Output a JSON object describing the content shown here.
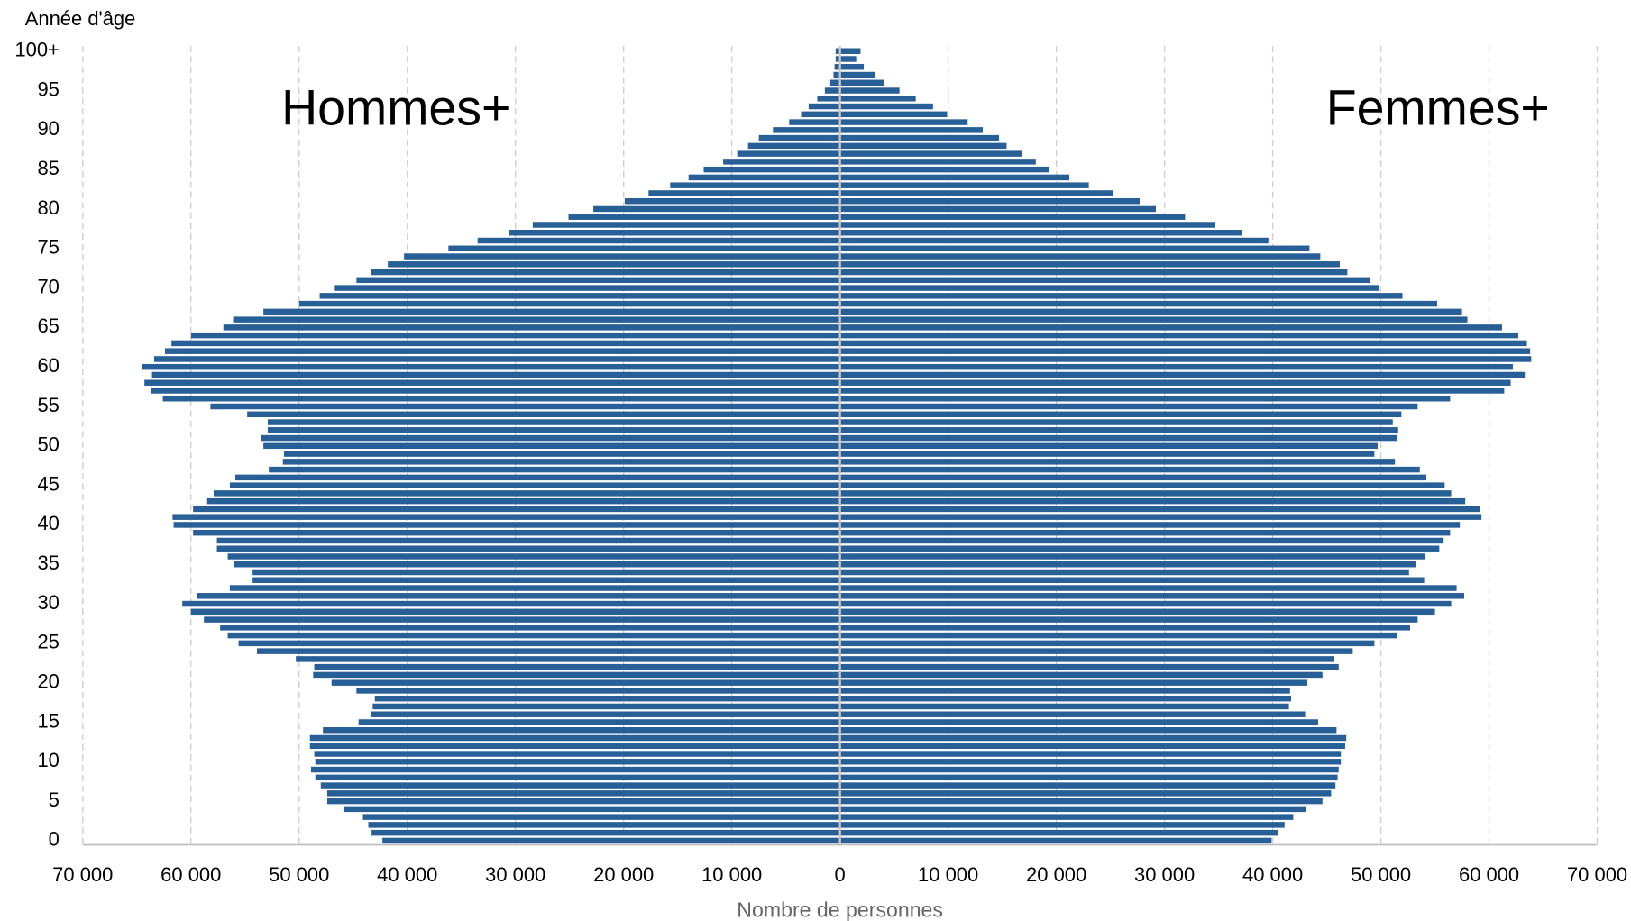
{
  "chart_data": {
    "type": "population-pyramid",
    "y_axis_label": "Année d'âge",
    "x_axis_label": "Nombre de personnes",
    "categories": [
      "0",
      null,
      null,
      null,
      null,
      "5",
      null,
      null,
      null,
      null,
      "10",
      null,
      null,
      null,
      null,
      "15",
      null,
      null,
      null,
      null,
      "20",
      null,
      null,
      null,
      null,
      "25",
      null,
      null,
      null,
      null,
      "30",
      null,
      null,
      null,
      null,
      "35",
      null,
      null,
      null,
      null,
      "40",
      null,
      null,
      null,
      null,
      "45",
      null,
      null,
      null,
      null,
      "50",
      null,
      null,
      null,
      null,
      "55",
      null,
      null,
      null,
      null,
      "60",
      null,
      null,
      null,
      null,
      "65",
      null,
      null,
      null,
      null,
      "70",
      null,
      null,
      null,
      null,
      "75",
      null,
      null,
      null,
      null,
      "80",
      null,
      null,
      null,
      null,
      "85",
      null,
      null,
      null,
      null,
      "90",
      null,
      null,
      null,
      null,
      "95",
      null,
      null,
      null,
      null,
      "100+"
    ],
    "series": [
      {
        "name": "Hommes+",
        "side": "left",
        "color": "#295f97",
        "values": [
          42300,
          43300,
          43600,
          44100,
          45900,
          47400,
          47400,
          48000,
          48500,
          48900,
          48500,
          48600,
          49000,
          49000,
          47800,
          44500,
          43400,
          43200,
          43000,
          44700,
          47000,
          48700,
          48600,
          50300,
          53900,
          55600,
          56600,
          57300,
          58800,
          60000,
          60800,
          59400,
          56400,
          54300,
          54300,
          56000,
          56600,
          57600,
          57600,
          59800,
          61600,
          61700,
          59800,
          58500,
          57900,
          56400,
          55900,
          52800,
          51500,
          51400,
          53300,
          53500,
          52900,
          52900,
          54800,
          58200,
          62600,
          63700,
          64300,
          63600,
          64500,
          63400,
          62400,
          61800,
          60000,
          57000,
          56100,
          53300,
          50000,
          48100,
          46700,
          44700,
          43400,
          41800,
          40300,
          36200,
          33500,
          30600,
          28400,
          25100,
          22800,
          19900,
          17700,
          15700,
          14000,
          12600,
          10800,
          9500,
          8500,
          7500,
          6200,
          4700,
          3600,
          2900,
          2100,
          1400,
          900,
          600,
          500,
          400,
          400
        ]
      },
      {
        "name": "Femmes+",
        "side": "right",
        "color": "#295f97",
        "values": [
          39900,
          40500,
          41100,
          41900,
          43100,
          44600,
          45400,
          45800,
          46000,
          46100,
          46300,
          46300,
          46700,
          46800,
          45900,
          44200,
          43000,
          41500,
          41700,
          41600,
          43200,
          44600,
          46100,
          45700,
          47400,
          49400,
          51500,
          52700,
          53400,
          55000,
          56500,
          57700,
          57000,
          54000,
          52600,
          53200,
          54100,
          55400,
          55800,
          56400,
          57300,
          59300,
          59200,
          57800,
          56500,
          55900,
          54200,
          53600,
          51300,
          49400,
          49700,
          51500,
          51600,
          51100,
          51900,
          53400,
          56400,
          61400,
          62000,
          63300,
          62200,
          63900,
          63800,
          63500,
          62700,
          61200,
          58000,
          57500,
          55200,
          52000,
          49800,
          49000,
          46900,
          46200,
          44400,
          43400,
          39600,
          37200,
          34700,
          31900,
          29200,
          27700,
          25200,
          23000,
          21200,
          19300,
          18100,
          16800,
          15400,
          14700,
          13200,
          11800,
          9900,
          8600,
          7000,
          5500,
          4100,
          3200,
          2200,
          1500,
          1900
        ]
      }
    ],
    "xlim": [
      -70000,
      70000
    ],
    "xticks": [
      {
        "value": -70000,
        "label": "70 000"
      },
      {
        "value": -60000,
        "label": "60 000"
      },
      {
        "value": -50000,
        "label": "50 000"
      },
      {
        "value": -40000,
        "label": "40 000"
      },
      {
        "value": -30000,
        "label": "30 000"
      },
      {
        "value": -20000,
        "label": "20 000"
      },
      {
        "value": -10000,
        "label": "10 000"
      },
      0,
      {
        "value": 10000,
        "label": "10 000"
      },
      {
        "value": 20000,
        "label": "20 000"
      },
      {
        "value": 30000,
        "label": "30 000"
      },
      {
        "value": 40000,
        "label": "40 000"
      },
      {
        "value": 50000,
        "label": "50 000"
      },
      {
        "value": 60000,
        "label": "60 000"
      },
      {
        "value": 70000,
        "label": "70 000"
      }
    ],
    "grid": true
  }
}
